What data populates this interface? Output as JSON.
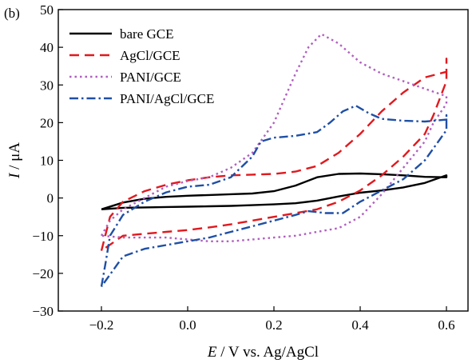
{
  "chart_data": {
    "type": "line",
    "panel_label": "(b)",
    "xlabel": {
      "italic": "E",
      "rest": " / V vs. Ag/AgCl"
    },
    "ylabel": {
      "italic": "I",
      "rest": " / μA"
    },
    "xlim": [
      -0.3,
      0.65
    ],
    "ylim": [
      -30,
      50
    ],
    "xticks": [
      -0.2,
      0.0,
      0.2,
      0.4,
      0.6
    ],
    "xtick_labels": [
      "−0.2",
      "0.0",
      "0.2",
      "0.4",
      "0.6"
    ],
    "yticks": [
      -30,
      -20,
      -10,
      0,
      10,
      20,
      30,
      40,
      50
    ],
    "ytick_labels": [
      "−30",
      "−20",
      "−10",
      "0",
      "10",
      "20",
      "30",
      "40",
      "50"
    ],
    "grid": false,
    "legend_position": "top-left",
    "series": [
      {
        "name": "bare GCE",
        "color": "#000000",
        "dash": "solid",
        "points": [
          [
            -0.2,
            -3
          ],
          [
            -0.15,
            -1.2
          ],
          [
            -0.1,
            -0.2
          ],
          [
            -0.05,
            0.3
          ],
          [
            0.0,
            0.6
          ],
          [
            0.05,
            0.8
          ],
          [
            0.1,
            1.0
          ],
          [
            0.15,
            1.2
          ],
          [
            0.2,
            1.8
          ],
          [
            0.25,
            3.3
          ],
          [
            0.3,
            5.5
          ],
          [
            0.35,
            6.4
          ],
          [
            0.4,
            6.5
          ],
          [
            0.45,
            6.3
          ],
          [
            0.5,
            6.0
          ],
          [
            0.55,
            5.6
          ],
          [
            0.6,
            5.5
          ],
          [
            0.6,
            6
          ],
          [
            0.55,
            4.0
          ],
          [
            0.5,
            2.8
          ],
          [
            0.45,
            2.0
          ],
          [
            0.4,
            1.4
          ],
          [
            0.35,
            0.4
          ],
          [
            0.3,
            -0.7
          ],
          [
            0.25,
            -1.4
          ],
          [
            0.2,
            -1.7
          ],
          [
            0.15,
            -1.9
          ],
          [
            0.1,
            -2.1
          ],
          [
            0.05,
            -2.2
          ],
          [
            0.0,
            -2.3
          ],
          [
            -0.05,
            -2.4
          ],
          [
            -0.1,
            -2.5
          ],
          [
            -0.15,
            -2.6
          ],
          [
            -0.2,
            -3
          ]
        ]
      },
      {
        "name": "AgCl/GCE",
        "color": "#e0191e",
        "dash": "long",
        "points": [
          [
            -0.2,
            -14
          ],
          [
            -0.18,
            -5
          ],
          [
            -0.15,
            -1
          ],
          [
            -0.1,
            1.8
          ],
          [
            -0.05,
            3.5
          ],
          [
            0.0,
            4.7
          ],
          [
            0.05,
            5.5
          ],
          [
            0.1,
            6.0
          ],
          [
            0.15,
            6.2
          ],
          [
            0.2,
            6.4
          ],
          [
            0.25,
            7.0
          ],
          [
            0.3,
            8.5
          ],
          [
            0.35,
            12
          ],
          [
            0.4,
            17
          ],
          [
            0.45,
            23
          ],
          [
            0.5,
            28
          ],
          [
            0.55,
            32
          ],
          [
            0.6,
            33.5
          ],
          [
            0.6,
            37
          ],
          [
            0.6,
            31
          ],
          [
            0.57,
            22
          ],
          [
            0.55,
            17
          ],
          [
            0.5,
            11
          ],
          [
            0.45,
            6
          ],
          [
            0.4,
            2
          ],
          [
            0.35,
            -1
          ],
          [
            0.3,
            -3
          ],
          [
            0.25,
            -4
          ],
          [
            0.2,
            -5
          ],
          [
            0.15,
            -6
          ],
          [
            0.1,
            -7
          ],
          [
            0.05,
            -7.8
          ],
          [
            0.0,
            -8.5
          ],
          [
            -0.05,
            -9
          ],
          [
            -0.1,
            -9.5
          ],
          [
            -0.15,
            -10
          ],
          [
            -0.2,
            -14
          ]
        ]
      },
      {
        "name": "PANI/GCE",
        "color": "#b05fc0",
        "dash": "dot",
        "points": [
          [
            -0.2,
            -10
          ],
          [
            -0.18,
            -6
          ],
          [
            -0.15,
            -3
          ],
          [
            -0.1,
            0
          ],
          [
            -0.05,
            3
          ],
          [
            0.0,
            4.5
          ],
          [
            0.05,
            5.5
          ],
          [
            0.1,
            8
          ],
          [
            0.15,
            12
          ],
          [
            0.2,
            20
          ],
          [
            0.25,
            33
          ],
          [
            0.28,
            40
          ],
          [
            0.31,
            43.5
          ],
          [
            0.35,
            41
          ],
          [
            0.4,
            36
          ],
          [
            0.45,
            33
          ],
          [
            0.5,
            31
          ],
          [
            0.55,
            29
          ],
          [
            0.6,
            27
          ],
          [
            0.6,
            25
          ],
          [
            0.57,
            20
          ],
          [
            0.55,
            15
          ],
          [
            0.5,
            8
          ],
          [
            0.45,
            1
          ],
          [
            0.4,
            -5
          ],
          [
            0.35,
            -8
          ],
          [
            0.3,
            -9
          ],
          [
            0.25,
            -10
          ],
          [
            0.2,
            -10.5
          ],
          [
            0.15,
            -11
          ],
          [
            0.1,
            -11.5
          ],
          [
            0.05,
            -11.5
          ],
          [
            0.0,
            -11
          ],
          [
            -0.05,
            -10.5
          ],
          [
            -0.1,
            -10.5
          ],
          [
            -0.15,
            -10.5
          ],
          [
            -0.2,
            -10
          ]
        ]
      },
      {
        "name": "PANI/AgCl/GCE",
        "color": "#1f4fa5",
        "dash": "dashdot",
        "points": [
          [
            -0.2,
            -23.5
          ],
          [
            -0.19,
            -17
          ],
          [
            -0.18,
            -10
          ],
          [
            -0.15,
            -4.5
          ],
          [
            -0.1,
            -1
          ],
          [
            -0.05,
            1.5
          ],
          [
            0.0,
            3
          ],
          [
            0.05,
            3.5
          ],
          [
            0.1,
            5.5
          ],
          [
            0.15,
            11
          ],
          [
            0.17,
            15
          ],
          [
            0.2,
            16
          ],
          [
            0.25,
            16.5
          ],
          [
            0.3,
            17.5
          ],
          [
            0.33,
            20
          ],
          [
            0.36,
            23
          ],
          [
            0.39,
            24.5
          ],
          [
            0.42,
            22.5
          ],
          [
            0.45,
            21
          ],
          [
            0.5,
            20.5
          ],
          [
            0.55,
            20.3
          ],
          [
            0.6,
            20.8
          ],
          [
            0.6,
            22
          ],
          [
            0.6,
            18
          ],
          [
            0.55,
            10
          ],
          [
            0.5,
            5
          ],
          [
            0.45,
            2
          ],
          [
            0.4,
            -1
          ],
          [
            0.36,
            -4
          ],
          [
            0.32,
            -4
          ],
          [
            0.28,
            -3.5
          ],
          [
            0.25,
            -4.5
          ],
          [
            0.2,
            -6
          ],
          [
            0.15,
            -7.5
          ],
          [
            0.1,
            -9
          ],
          [
            0.05,
            -10.5
          ],
          [
            0.0,
            -11.5
          ],
          [
            -0.05,
            -12.5
          ],
          [
            -0.1,
            -13.5
          ],
          [
            -0.15,
            -15.5
          ],
          [
            -0.2,
            -23.5
          ]
        ]
      }
    ]
  }
}
